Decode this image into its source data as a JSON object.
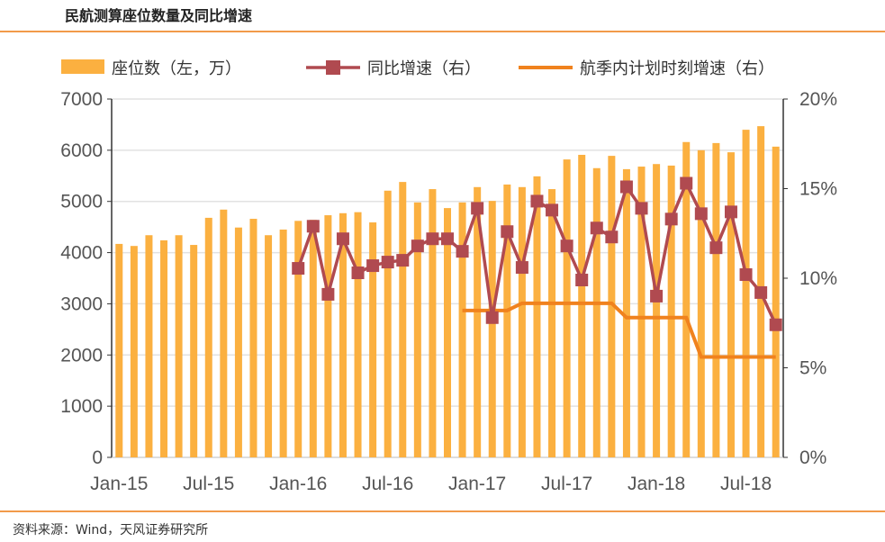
{
  "title": "民航测算座位数量及同比增速",
  "footer": "资料来源：Wind，天风证券研究所",
  "chart_data": {
    "type": "bar+line",
    "title": "民航测算座位数量及同比增速",
    "categories_start": "Jan-15",
    "x_tick_labels": [
      "Jan-15",
      "Jul-15",
      "Jan-16",
      "Jul-16",
      "Jan-17",
      "Jul-17",
      "Jan-18",
      "Jul-18"
    ],
    "left_axis": {
      "ylim": [
        0,
        7000
      ],
      "ticks": [
        "0",
        "1000",
        "2000",
        "3000",
        "4000",
        "5000",
        "6000",
        "7000"
      ]
    },
    "right_axis": {
      "ylim": [
        0,
        20
      ],
      "ticks": [
        "0%",
        "5%",
        "10%",
        "15%",
        "20%"
      ]
    },
    "grid": true,
    "legend_position": "top",
    "series": [
      {
        "name": "座位数（左，万）",
        "type": "bar",
        "axis": "left",
        "color": "#fbb040",
        "start_index": 0,
        "values": [
          4170,
          4130,
          4340,
          4240,
          4340,
          4150,
          4680,
          4840,
          4490,
          4660,
          4340,
          4450,
          4620,
          4640,
          4730,
          4770,
          4790,
          4590,
          5210,
          5380,
          4980,
          5240,
          4870,
          4980,
          5280,
          5010,
          5330,
          5280,
          5490,
          5240,
          5820,
          5910,
          5650,
          5890,
          5630,
          5680,
          5730,
          5700,
          6160,
          6000,
          6140,
          5960,
          6400,
          6470,
          6070
        ]
      },
      {
        "name": "同比增速（右）",
        "type": "line",
        "axis": "right",
        "color": "#b04a50",
        "marker": "square",
        "start_index": 12,
        "values": [
          10.55,
          12.9,
          9.1,
          12.2,
          10.3,
          10.7,
          10.9,
          11.0,
          11.8,
          12.2,
          12.2,
          11.5,
          13.9,
          7.8,
          12.6,
          10.6,
          14.3,
          13.8,
          11.8,
          9.9,
          12.8,
          12.3,
          15.1,
          13.9,
          9.0,
          13.3,
          15.3,
          13.6,
          11.7,
          13.7,
          10.2,
          9.2,
          7.4
        ]
      },
      {
        "name": "航季内计划时刻增速（右）",
        "type": "line",
        "axis": "right",
        "color": "#f0821e",
        "start_index": 23,
        "values": [
          8.2,
          8.2,
          8.2,
          8.2,
          8.6,
          8.6,
          8.6,
          8.6,
          8.6,
          8.6,
          8.6,
          7.8,
          7.8,
          7.8,
          7.8,
          7.8,
          5.6,
          5.6,
          5.6,
          5.6,
          5.6,
          5.6
        ]
      }
    ]
  }
}
